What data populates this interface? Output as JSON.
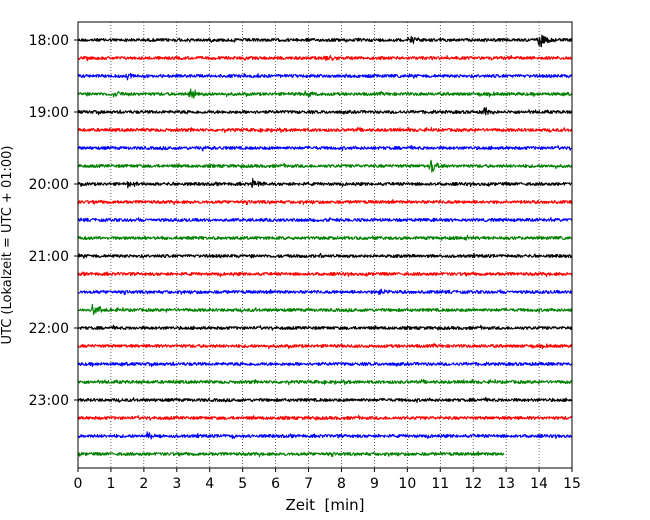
{
  "chart_data": {
    "type": "line",
    "title": "",
    "xlabel": "Zeit  [min]",
    "ylabel": "UTC (Lokalzeit = UTC + 01:00)",
    "xlim": [
      0,
      15
    ],
    "x_ticks": [
      0,
      1,
      2,
      3,
      4,
      5,
      6,
      7,
      8,
      9,
      10,
      11,
      12,
      13,
      14,
      15
    ],
    "y_tick_labels": [
      "18:00",
      "19:00",
      "20:00",
      "21:00",
      "22:00",
      "23:00"
    ],
    "trace_minutes": 15,
    "grid": "vertical dotted",
    "color_cycle": [
      "#000000",
      "#ff0000",
      "#0000ff",
      "#008000"
    ],
    "traces": [
      {
        "start": "18:00",
        "end_minute": 15,
        "events": [
          {
            "t": 14.0,
            "amp": 1.0
          },
          {
            "t": 10.1,
            "amp": 0.4
          }
        ]
      },
      {
        "start": "18:15",
        "end_minute": 15,
        "events": [
          {
            "t": 7.5,
            "amp": 0.35
          }
        ]
      },
      {
        "start": "18:30",
        "end_minute": 15,
        "events": [
          {
            "t": 1.5,
            "amp": 0.35
          }
        ]
      },
      {
        "start": "18:45",
        "end_minute": 15,
        "events": [
          {
            "t": 3.4,
            "amp": 1.0
          },
          {
            "t": 1.1,
            "amp": 0.45
          },
          {
            "t": 6.9,
            "amp": 0.35
          }
        ]
      },
      {
        "start": "19:00",
        "end_minute": 15,
        "events": [
          {
            "t": 12.3,
            "amp": 0.55
          }
        ]
      },
      {
        "start": "19:15",
        "end_minute": 15,
        "events": []
      },
      {
        "start": "19:30",
        "end_minute": 15,
        "events": [
          {
            "t": 3.8,
            "amp": 0.3
          }
        ]
      },
      {
        "start": "19:45",
        "end_minute": 15,
        "events": [
          {
            "t": 10.7,
            "amp": 0.9
          }
        ]
      },
      {
        "start": "20:00",
        "end_minute": 15,
        "events": [
          {
            "t": 5.3,
            "amp": 0.5
          },
          {
            "t": 1.5,
            "amp": 0.35
          }
        ]
      },
      {
        "start": "20:15",
        "end_minute": 15,
        "events": []
      },
      {
        "start": "20:30",
        "end_minute": 15,
        "events": []
      },
      {
        "start": "20:45",
        "end_minute": 15,
        "events": []
      },
      {
        "start": "21:00",
        "end_minute": 15,
        "events": []
      },
      {
        "start": "21:15",
        "end_minute": 15,
        "events": []
      },
      {
        "start": "21:30",
        "end_minute": 15,
        "events": [
          {
            "t": 9.1,
            "amp": 0.45
          }
        ]
      },
      {
        "start": "21:45",
        "end_minute": 15,
        "events": [
          {
            "t": 0.45,
            "amp": 0.8
          }
        ]
      },
      {
        "start": "22:00",
        "end_minute": 15,
        "events": []
      },
      {
        "start": "22:15",
        "end_minute": 15,
        "events": []
      },
      {
        "start": "22:30",
        "end_minute": 15,
        "events": []
      },
      {
        "start": "22:45",
        "end_minute": 15,
        "events": []
      },
      {
        "start": "23:00",
        "end_minute": 15,
        "events": []
      },
      {
        "start": "23:15",
        "end_minute": 15,
        "events": []
      },
      {
        "start": "23:30",
        "end_minute": 15,
        "events": [
          {
            "t": 2.1,
            "amp": 0.35
          },
          {
            "t": 4.7,
            "amp": 0.3
          }
        ]
      },
      {
        "start": "23:45",
        "end_minute": 12.95,
        "events": []
      }
    ]
  }
}
